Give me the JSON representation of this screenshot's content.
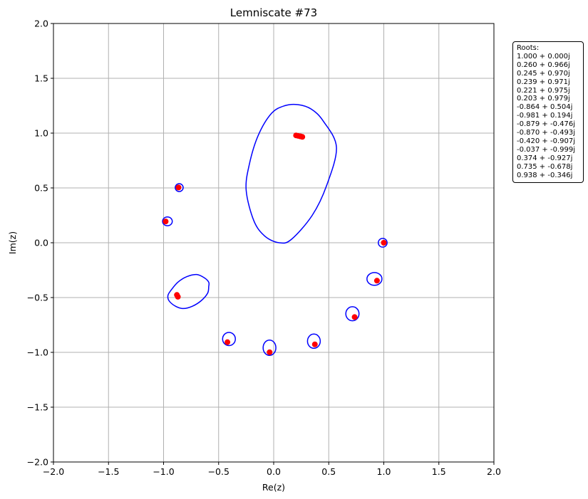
{
  "chart_data": {
    "type": "scatter",
    "title": "Lemniscate #73",
    "xlabel": "Re(z)",
    "ylabel": "Im(z)",
    "xlim": [
      -2.0,
      2.0
    ],
    "ylim": [
      -2.0,
      2.0
    ],
    "xticks": [
      "−2.0",
      "−1.5",
      "−1.0",
      "−0.5",
      "0.0",
      "0.5",
      "1.0",
      "1.5",
      "2.0"
    ],
    "yticks": [
      "−2.0",
      "−1.5",
      "−1.0",
      "−0.5",
      "0.0",
      "0.5",
      "1.0",
      "1.5",
      "2.0"
    ],
    "grid": true,
    "colors": {
      "curve": "#0000ff",
      "roots": "#ff0000",
      "grid": "#b0b0b0"
    },
    "legend": {
      "placement": "right-outside-top",
      "title": "Roots:",
      "entries": [
        "1.000 + 0.000j",
        "0.260 + 0.966j",
        "0.245 + 0.970j",
        "0.239 + 0.971j",
        "0.221 + 0.975j",
        "0.203 + 0.979j",
        "-0.864 + 0.504j",
        "-0.981 + 0.194j",
        "-0.879 + -0.476j",
        "-0.870 + -0.493j",
        "-0.420 + -0.907j",
        "-0.037 + -0.999j",
        "0.374 + -0.927j",
        "0.735 + -0.678j",
        "0.938 + -0.346j"
      ]
    },
    "roots": [
      {
        "x": 1.0,
        "y": 0.0
      },
      {
        "x": 0.26,
        "y": 0.966
      },
      {
        "x": 0.245,
        "y": 0.97
      },
      {
        "x": 0.239,
        "y": 0.971
      },
      {
        "x": 0.221,
        "y": 0.975
      },
      {
        "x": 0.203,
        "y": 0.979
      },
      {
        "x": -0.864,
        "y": 0.504
      },
      {
        "x": -0.981,
        "y": 0.194
      },
      {
        "x": -0.879,
        "y": -0.476
      },
      {
        "x": -0.87,
        "y": -0.493
      },
      {
        "x": -0.42,
        "y": -0.907
      },
      {
        "x": -0.037,
        "y": -0.999
      },
      {
        "x": 0.374,
        "y": -0.927
      },
      {
        "x": 0.735,
        "y": -0.678
      },
      {
        "x": 0.938,
        "y": -0.346
      }
    ],
    "curves": [
      {
        "points": [
          [
            0.22,
            1.26
          ],
          [
            0.34,
            1.22
          ],
          [
            0.45,
            1.11
          ],
          [
            0.57,
            0.87
          ],
          [
            0.48,
            0.52
          ],
          [
            0.35,
            0.25
          ],
          [
            0.16,
            0.03
          ],
          [
            0.05,
            0.0
          ],
          [
            -0.08,
            0.06
          ],
          [
            -0.18,
            0.2
          ],
          [
            -0.25,
            0.48
          ],
          [
            -0.22,
            0.72
          ],
          [
            -0.14,
            0.98
          ],
          [
            -0.02,
            1.18
          ],
          [
            0.1,
            1.25
          ],
          [
            0.22,
            1.26
          ]
        ]
      },
      {
        "points": [
          [
            -0.59,
            -0.4
          ],
          [
            -0.6,
            -0.46
          ],
          [
            -0.66,
            -0.53
          ],
          [
            -0.74,
            -0.58
          ],
          [
            -0.82,
            -0.6
          ],
          [
            -0.89,
            -0.58
          ],
          [
            -0.95,
            -0.53
          ],
          [
            -0.96,
            -0.48
          ],
          [
            -0.93,
            -0.43
          ],
          [
            -0.87,
            -0.36
          ],
          [
            -0.79,
            -0.31
          ],
          [
            -0.7,
            -0.29
          ],
          [
            -0.63,
            -0.32
          ],
          [
            -0.59,
            -0.36
          ],
          [
            -0.59,
            -0.4
          ]
        ]
      }
    ],
    "ellipses": [
      {
        "cx": -0.858,
        "cy": 0.503,
        "rx": 0.036,
        "ry": 0.036
      },
      {
        "cx": -0.965,
        "cy": 0.195,
        "rx": 0.044,
        "ry": 0.04
      },
      {
        "cx": 0.99,
        "cy": 0.0,
        "rx": 0.04,
        "ry": 0.04
      },
      {
        "cx": 0.915,
        "cy": -0.33,
        "rx": 0.068,
        "ry": 0.058
      },
      {
        "cx": 0.715,
        "cy": -0.648,
        "rx": 0.06,
        "ry": 0.064
      },
      {
        "cx": 0.365,
        "cy": -0.898,
        "rx": 0.058,
        "ry": 0.065
      },
      {
        "cx": -0.038,
        "cy": -0.958,
        "rx": 0.058,
        "ry": 0.07
      },
      {
        "cx": -0.406,
        "cy": -0.878,
        "rx": 0.058,
        "ry": 0.06
      }
    ]
  }
}
